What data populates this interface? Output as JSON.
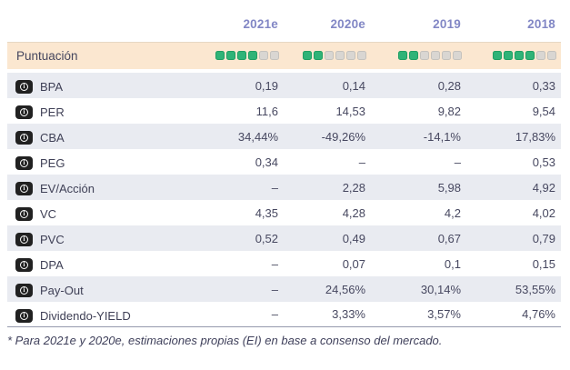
{
  "icons": {
    "info_glyph": "i"
  },
  "colors": {
    "accent_header": "#8287c5",
    "score_row_bg": "#fbe7d0",
    "rating_filled": "#2fb377",
    "rating_empty": "#d9d6d2",
    "alt_row_bg": "#e9ebf1",
    "text": "#45465e"
  },
  "table": {
    "columns": [
      "2021e",
      "2020e",
      "2019",
      "2018"
    ],
    "score_row": {
      "label": "Puntuación",
      "ratings": [
        {
          "filled": 4,
          "total": 6
        },
        {
          "filled": 2,
          "total": 6
        },
        {
          "filled": 2,
          "total": 6
        },
        {
          "filled": 4,
          "total": 6
        }
      ]
    },
    "rows": [
      {
        "label": "BPA",
        "values": [
          "0,19",
          "0,14",
          "0,28",
          "0,33"
        ]
      },
      {
        "label": "PER",
        "values": [
          "11,6",
          "14,53",
          "9,82",
          "9,54"
        ]
      },
      {
        "label": "CBA",
        "values": [
          "34,44%",
          "-49,26%",
          "-14,1%",
          "17,83%"
        ]
      },
      {
        "label": "PEG",
        "values": [
          "0,34",
          "–",
          "–",
          "0,53"
        ]
      },
      {
        "label": "EV/Acción",
        "values": [
          "–",
          "2,28",
          "5,98",
          "4,92"
        ]
      },
      {
        "label": "VC",
        "values": [
          "4,35",
          "4,28",
          "4,2",
          "4,02"
        ]
      },
      {
        "label": "PVC",
        "values": [
          "0,52",
          "0,49",
          "0,67",
          "0,79"
        ]
      },
      {
        "label": "DPA",
        "values": [
          "–",
          "0,07",
          "0,1",
          "0,15"
        ]
      },
      {
        "label": "Pay-Out",
        "values": [
          "–",
          "24,56%",
          "30,14%",
          "53,55%"
        ]
      },
      {
        "label": "Dividendo-YIELD",
        "values": [
          "–",
          "3,33%",
          "3,57%",
          "4,76%"
        ]
      }
    ]
  },
  "footnote": "* Para 2021e y 2020e, estimaciones propias (EI) en base a consenso del mercado."
}
